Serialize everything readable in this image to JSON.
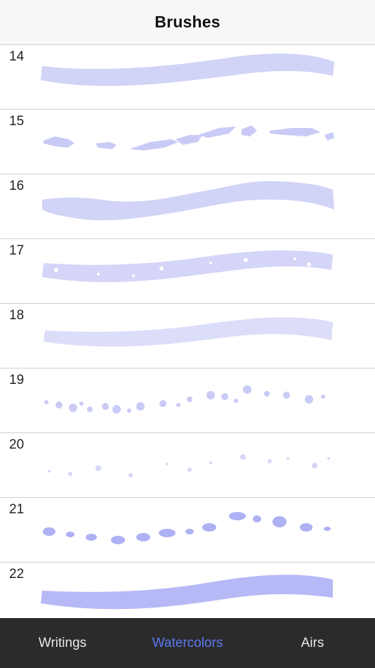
{
  "nav": {
    "title": "Brushes"
  },
  "brushes": [
    {
      "number": "14",
      "style": "solid"
    },
    {
      "number": "15",
      "style": "dashes"
    },
    {
      "number": "16",
      "style": "wavy"
    },
    {
      "number": "17",
      "style": "speckled"
    },
    {
      "number": "18",
      "style": "soft"
    },
    {
      "number": "19",
      "style": "spray"
    },
    {
      "number": "20",
      "style": "faint-spray"
    },
    {
      "number": "21",
      "style": "blotches"
    },
    {
      "number": "22",
      "style": "dense"
    }
  ],
  "colors": {
    "stroke": "#c7c8f7",
    "stroke_dense": "#a9adf3",
    "active_tab": "#5b79f0",
    "tabbar": "#2b2b2d"
  },
  "tabs": [
    {
      "label": "Writings",
      "active": false
    },
    {
      "label": "Watercolors",
      "active": true
    },
    {
      "label": "Airs",
      "active": false
    }
  ]
}
